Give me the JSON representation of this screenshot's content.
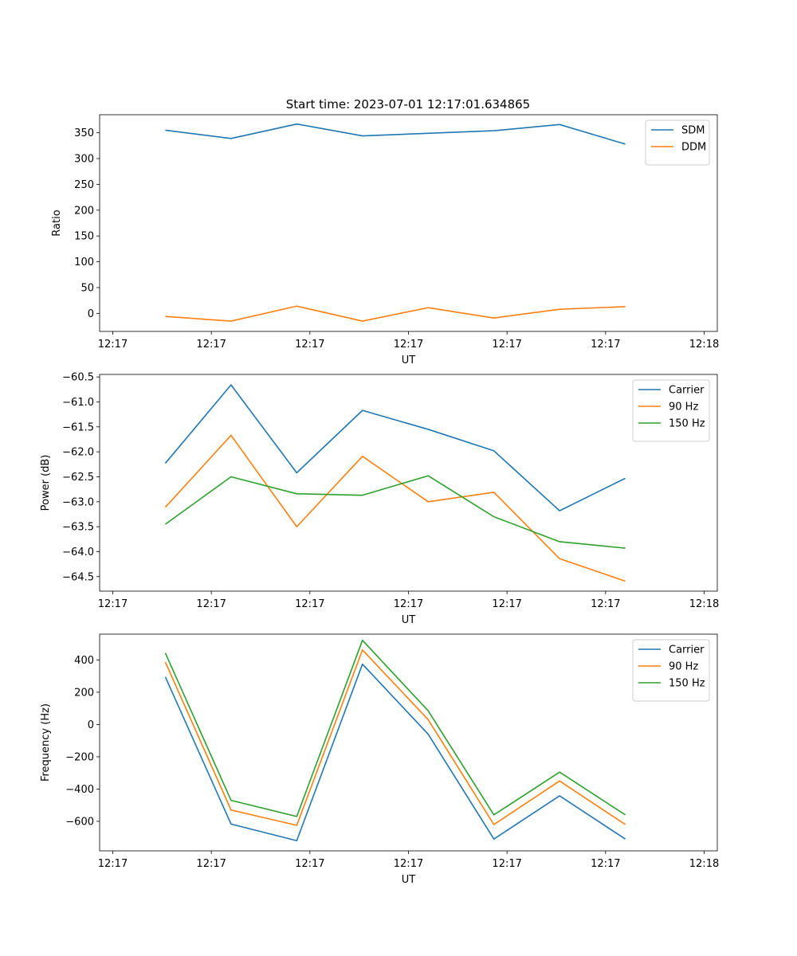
{
  "figure": {
    "title": "Start time: 2023-07-01 12:17:01.634865"
  },
  "chart_data": [
    {
      "type": "line",
      "name": "ratio",
      "title": "Start time: 2023-07-01 12:17:01.634865",
      "xlabel": "UT",
      "ylabel": "Ratio",
      "xlim": [
        0,
        9.4
      ],
      "ylim": [
        -35,
        385
      ],
      "xticks": [
        0.2,
        1.7,
        3.2,
        4.7,
        6.2,
        7.7,
        9.2
      ],
      "xtick_labels": [
        "12:17",
        "12:17",
        "12:17",
        "12:17",
        "12:17",
        "12:17",
        "12:18"
      ],
      "yticks": [
        0,
        50,
        100,
        150,
        200,
        250,
        300,
        350
      ],
      "ytick_labels": [
        "0",
        "50",
        "100",
        "150",
        "200",
        "250",
        "300",
        "350"
      ],
      "legend_position": "top-right",
      "x": [
        1,
        2,
        3,
        4,
        5,
        6,
        7,
        8
      ],
      "series": [
        {
          "name": "SDM",
          "color": "#1f77b4",
          "values": [
            355,
            339,
            367,
            344,
            349,
            354,
            366,
            328
          ]
        },
        {
          "name": "DDM",
          "color": "#ff7f0e",
          "values": [
            -6,
            -15,
            14,
            -15,
            11,
            -9,
            8,
            13
          ]
        }
      ]
    },
    {
      "type": "line",
      "name": "power",
      "title": "",
      "xlabel": "UT",
      "ylabel": "Power (dB)",
      "xlim": [
        0,
        9.4
      ],
      "ylim": [
        -64.79,
        -60.45
      ],
      "xticks": [
        0.2,
        1.7,
        3.2,
        4.7,
        6.2,
        7.7,
        9.2
      ],
      "xtick_labels": [
        "12:17",
        "12:17",
        "12:17",
        "12:17",
        "12:17",
        "12:17",
        "12:18"
      ],
      "yticks": [
        -64.5,
        -64.0,
        -63.5,
        -63.0,
        -62.5,
        -62.0,
        -61.5,
        -61.0,
        -60.5
      ],
      "ytick_labels": [
        "−64.5",
        "−64.0",
        "−63.5",
        "−63.0",
        "−62.5",
        "−62.0",
        "−61.5",
        "−61.0",
        "−60.5"
      ],
      "legend_position": "top-right",
      "x": [
        1,
        2,
        3,
        4,
        5,
        6,
        7,
        8
      ],
      "series": [
        {
          "name": "Carrier",
          "color": "#1f77b4",
          "values": [
            -62.23,
            -60.66,
            -62.42,
            -61.17,
            -61.55,
            -61.98,
            -63.18,
            -62.53
          ]
        },
        {
          "name": "90 Hz",
          "color": "#ff7f0e",
          "values": [
            -63.11,
            -61.67,
            -63.5,
            -62.09,
            -63.0,
            -62.81,
            -64.14,
            -64.59
          ]
        },
        {
          "name": "150 Hz",
          "color": "#2ca02c",
          "values": [
            -63.45,
            -62.5,
            -62.84,
            -62.87,
            -62.48,
            -63.3,
            -63.8,
            -63.93
          ]
        }
      ]
    },
    {
      "type": "line",
      "name": "frequency",
      "title": "",
      "xlabel": "UT",
      "ylabel": "Frequency (Hz)",
      "xlim": [
        0,
        9.4
      ],
      "ylim": [
        -783,
        560
      ],
      "xticks": [
        0.2,
        1.7,
        3.2,
        4.7,
        6.2,
        7.7,
        9.2
      ],
      "xtick_labels": [
        "12:17",
        "12:17",
        "12:17",
        "12:17",
        "12:17",
        "12:17",
        "12:18"
      ],
      "yticks": [
        -600,
        -400,
        -200,
        0,
        200,
        400
      ],
      "ytick_labels": [
        "−600",
        "−400",
        "−200",
        "0",
        "200",
        "400"
      ],
      "legend_position": "top-right",
      "x": [
        1,
        2,
        3,
        4,
        5,
        6,
        7,
        8
      ],
      "series": [
        {
          "name": "Carrier",
          "color": "#1f77b4",
          "values": [
            295,
            -617,
            -720,
            374,
            -60,
            -710,
            -442,
            -710
          ]
        },
        {
          "name": "90 Hz",
          "color": "#ff7f0e",
          "values": [
            387,
            -530,
            -625,
            462,
            30,
            -620,
            -350,
            -620
          ]
        },
        {
          "name": "150 Hz",
          "color": "#2ca02c",
          "values": [
            443,
            -470,
            -570,
            522,
            85,
            -560,
            -295,
            -560
          ]
        }
      ]
    }
  ]
}
